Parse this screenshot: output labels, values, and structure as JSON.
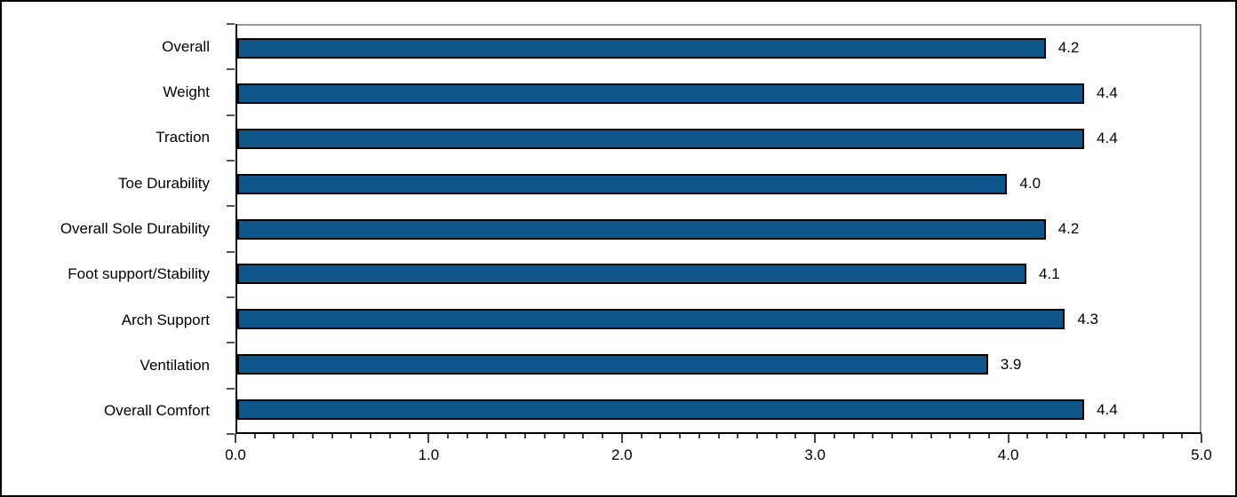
{
  "chart_data": {
    "type": "bar",
    "orientation": "horizontal",
    "title": "",
    "xlabel": "",
    "ylabel": "",
    "categories": [
      "Overall",
      "Weight",
      "Traction",
      "Toe Durability",
      "Overall Sole Durability",
      "Foot support/Stability",
      "Arch Support",
      "Ventilation",
      "Overall Comfort"
    ],
    "values": [
      4.2,
      4.4,
      4.4,
      4.0,
      4.2,
      4.1,
      4.3,
      3.9,
      4.4
    ],
    "value_labels": [
      "4.2",
      "4.4",
      "4.4",
      "4.0",
      "4.2",
      "4.1",
      "4.3",
      "3.9",
      "4.4"
    ],
    "xlim": [
      0,
      5
    ],
    "x_major_tick_labels": [
      "0.0",
      "1.0",
      "2.0",
      "3.0",
      "4.0",
      "5.0"
    ],
    "x_major_tick_step": 1.0,
    "x_minor_tick_step": 0.1,
    "grid": false,
    "legend": "none",
    "colors": {
      "bar_fill": "#0E568C",
      "bar_border": "#000000",
      "axis_line": "#000000",
      "plot_border": "#999999",
      "figure_border": "#000000",
      "text": "#000000",
      "background": "#FFFFFF"
    }
  }
}
